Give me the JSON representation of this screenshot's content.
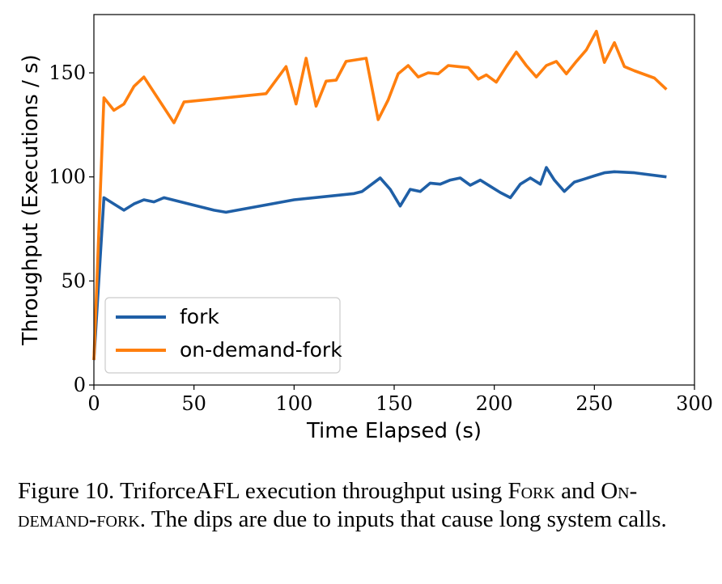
{
  "chart_data": {
    "type": "line",
    "xlabel": "Time Elapsed (s)",
    "ylabel": "Throughput (Executions / s)",
    "xlim": [
      0,
      300
    ],
    "ylim": [
      0,
      178
    ],
    "xticks": [
      0,
      50,
      100,
      150,
      200,
      250,
      300
    ],
    "yticks": [
      0,
      50,
      100,
      150
    ],
    "grid": false,
    "legend_position": "lower-left",
    "series": [
      {
        "name": "fork",
        "color": "#1f5fa6",
        "x": [
          0,
          5,
          10,
          15,
          20,
          25,
          30,
          35,
          60,
          66,
          100,
          130,
          134,
          143,
          148,
          153,
          158,
          163,
          168,
          173,
          178,
          183,
          188,
          193,
          198,
          203,
          208,
          213,
          218,
          223,
          226,
          230,
          235,
          240,
          245,
          250,
          255,
          260,
          270,
          286
        ],
        "y": [
          12,
          90,
          87,
          84,
          87,
          89,
          88,
          90,
          84,
          83,
          89,
          92,
          93,
          99.5,
          94,
          86,
          94,
          93,
          97,
          96.5,
          98.5,
          99.5,
          96,
          98.5,
          95.5,
          92.5,
          90,
          96.5,
          99.5,
          96.5,
          104.5,
          98.5,
          93,
          97.5,
          99,
          100.5,
          102,
          102.5,
          102,
          100
        ]
      },
      {
        "name": "on-demand-fork",
        "color": "#ff7f0e",
        "x": [
          0,
          5,
          10,
          15,
          20,
          25,
          40,
          45,
          86,
          96,
          101,
          106,
          111,
          116,
          121,
          126,
          136,
          142,
          147,
          152,
          157,
          162,
          167,
          172,
          177,
          182,
          187,
          192,
          196,
          201,
          206,
          211,
          216,
          221,
          226,
          231,
          236,
          241,
          246,
          251,
          255,
          260,
          265,
          270,
          280,
          286
        ],
        "y": [
          12,
          138,
          132,
          135,
          143.5,
          148,
          126,
          136,
          140,
          153,
          135,
          157,
          134,
          146,
          146.5,
          155.5,
          157,
          127.5,
          137,
          149.5,
          153.5,
          148,
          150,
          149.5,
          153.5,
          153,
          152.5,
          147,
          149,
          145.5,
          153,
          160,
          153.5,
          148,
          153.5,
          155.5,
          149.5,
          155.5,
          161,
          170,
          155,
          164.5,
          153,
          151,
          147.5,
          142
        ]
      }
    ]
  },
  "caption": {
    "prefix": "Figure 10. TriforceAFL execution throughput using ",
    "term1": "Fork",
    "middle": " and ",
    "term2": "On-demand-fork",
    "suffix": ". The dips are due to inputs that cause long system calls."
  }
}
